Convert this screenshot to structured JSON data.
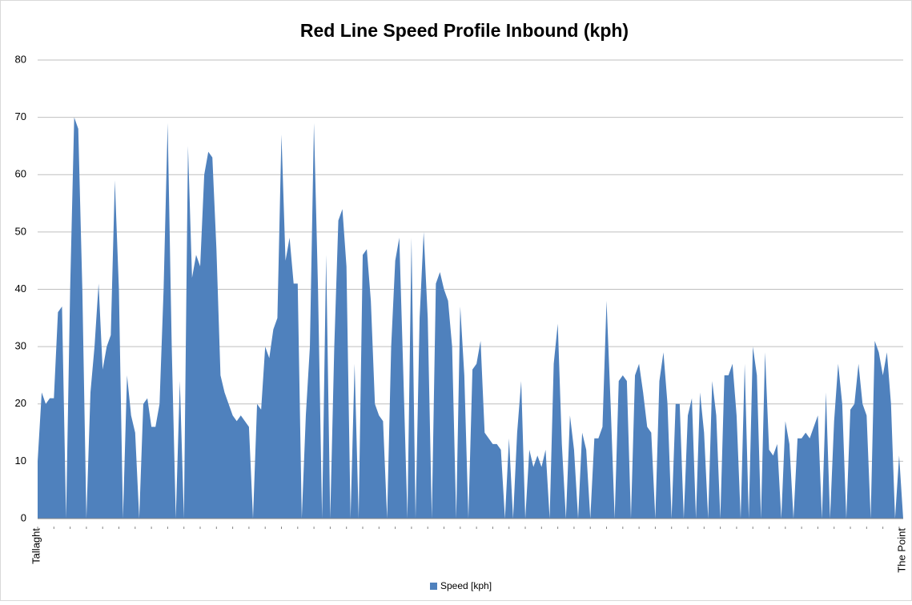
{
  "chart_data": {
    "type": "area",
    "title": "Red Line Speed Profile Inbound (kph)",
    "categories": [
      "Tallaght",
      null,
      null,
      null,
      null,
      null,
      null,
      null,
      null,
      null,
      null,
      null,
      null,
      null,
      null,
      null,
      null,
      null,
      null,
      null,
      null,
      null,
      null,
      null,
      null,
      null,
      null,
      null,
      null,
      null,
      null,
      null,
      null,
      null,
      null,
      null,
      null,
      null,
      null,
      null,
      null,
      null,
      null,
      null,
      null,
      null,
      null,
      null,
      null,
      null,
      null,
      null,
      null,
      null,
      null,
      null,
      null,
      null,
      null,
      null,
      null,
      null,
      null,
      null,
      null,
      null,
      null,
      null,
      null,
      null,
      null,
      null,
      null,
      null,
      null,
      null,
      null,
      null,
      null,
      null,
      null,
      null,
      null,
      null,
      null,
      null,
      null,
      null,
      null,
      null,
      null,
      null,
      null,
      null,
      null,
      null,
      null,
      null,
      null,
      null,
      null,
      null,
      null,
      null,
      null,
      null,
      null,
      null,
      null,
      null,
      null,
      null,
      null,
      null,
      null,
      null,
      null,
      null,
      null,
      null,
      null,
      null,
      null,
      null,
      null,
      null,
      null,
      null,
      null,
      null,
      null,
      null,
      null,
      null,
      null,
      null,
      null,
      null,
      null,
      null,
      null,
      null,
      null,
      null,
      null,
      null,
      null,
      null,
      null,
      null,
      null,
      null,
      null,
      null,
      null,
      null,
      null,
      null,
      null,
      null,
      null,
      null,
      null,
      null,
      null,
      null,
      null,
      null,
      null,
      null,
      null,
      null,
      null,
      null,
      null,
      null,
      null,
      null,
      null,
      null,
      null,
      null,
      null,
      null,
      null,
      null,
      null,
      null,
      null,
      null,
      null,
      null,
      null,
      null,
      null,
      null,
      null,
      null,
      null,
      null,
      null,
      null,
      null,
      null,
      null,
      null,
      null,
      null,
      null,
      null,
      null,
      null,
      null,
      "The Point"
    ],
    "series": [
      {
        "name": "Speed [kph]",
        "color": "#4f81bd",
        "values": [
          10,
          22,
          20,
          21,
          21,
          36,
          37,
          0,
          40,
          70,
          68,
          40,
          0,
          22,
          30,
          41,
          26,
          30,
          32,
          59,
          40,
          0,
          25,
          18,
          15,
          0,
          20,
          21,
          16,
          16,
          20,
          40,
          69,
          30,
          0,
          24,
          0,
          65,
          42,
          46,
          44,
          60,
          64,
          63,
          47,
          25,
          22,
          20,
          18,
          17,
          18,
          17,
          16,
          0,
          20,
          19,
          30,
          28,
          33,
          35,
          67,
          45,
          49,
          41,
          41,
          0,
          18,
          30,
          69,
          40,
          0,
          46,
          0,
          30,
          52,
          54,
          44,
          0,
          27,
          0,
          46,
          47,
          38,
          20,
          18,
          17,
          0,
          30,
          45,
          49,
          25,
          0,
          49,
          0,
          35,
          50,
          35,
          0,
          41,
          43,
          40,
          38,
          30,
          0,
          37,
          25,
          0,
          26,
          27,
          31,
          15,
          14,
          13,
          13,
          12,
          0,
          14,
          0,
          15,
          24,
          0,
          12,
          9,
          11,
          9,
          12,
          0,
          27,
          34,
          13,
          0,
          18,
          12,
          0,
          15,
          12,
          0,
          14,
          14,
          16,
          38,
          20,
          0,
          24,
          25,
          24,
          0,
          25,
          27,
          22,
          16,
          15,
          0,
          24,
          29,
          20,
          0,
          20,
          20,
          0,
          18,
          21,
          0,
          22,
          15,
          0,
          24,
          18,
          0,
          25,
          25,
          27,
          18,
          0,
          27,
          0,
          30,
          25,
          0,
          29,
          12,
          11,
          13,
          0,
          17,
          13,
          0,
          14,
          14,
          15,
          14,
          16,
          18,
          0,
          22,
          0,
          17,
          27,
          20,
          0,
          19,
          20,
          27,
          20,
          18,
          0,
          31,
          29,
          25,
          29,
          20,
          0,
          11,
          0
        ]
      }
    ],
    "ylim": [
      0,
      80
    ],
    "yticks": [
      0,
      10,
      20,
      30,
      40,
      50,
      60,
      70,
      80
    ],
    "grid": true,
    "legend": "bottom"
  }
}
